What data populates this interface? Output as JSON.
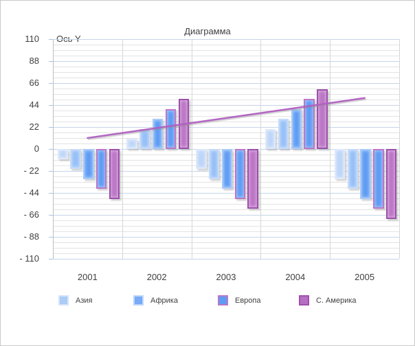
{
  "title": "Диаграмма",
  "y_axis_title": "Ось Y",
  "y_tick_labels": [
    "110",
    "88",
    "66",
    "44",
    "22",
    "0",
    "- 22",
    "- 44",
    "- 66",
    "- 88",
    "- 110"
  ],
  "x_tick_labels": [
    "2001",
    "2002",
    "2003",
    "2004",
    "2005"
  ],
  "legend": [
    {
      "label": "Азия",
      "fill": "#abccf6",
      "border": "#d6e4fb"
    },
    {
      "label": "Африка",
      "fill": "#78abf7",
      "border": "#bdd7fa"
    },
    {
      "label": "Европа",
      "fill": "#5e9cf4",
      "border": "#bc77c7"
    },
    {
      "label": "С. Америка",
      "fill": "#b76fc3",
      "border": "#9e51aa"
    }
  ],
  "chart_data": {
    "type": "bar",
    "title": "Диаграмма",
    "xlabel": "",
    "ylabel": "Ось Y",
    "categories": [
      "2001",
      "2002",
      "2003",
      "2004",
      "2005"
    ],
    "ylim": [
      -110,
      110
    ],
    "y_major_unit": 22,
    "y_minor_unit": 5.5,
    "grid": "on",
    "legend_position": "bottom",
    "series": [
      {
        "name": "Азия",
        "fill": "#bdd5f8",
        "border": "#dde9fc",
        "values": [
          -10,
          10,
          -20,
          20,
          -30
        ]
      },
      {
        "name": "",
        "fill": "#97c0f7",
        "border": "#c6dcfb",
        "values": [
          -20,
          20,
          -30,
          30,
          -40
        ]
      },
      {
        "name": "Африка",
        "fill": "#5e9cf4",
        "border": "#a9cbf9",
        "values": [
          -30,
          30,
          -40,
          40,
          -50
        ]
      },
      {
        "name": "Европа",
        "fill": "#5e9cf4",
        "border": "#bc77c7",
        "values": [
          -40,
          40,
          -50,
          50,
          -60
        ]
      },
      {
        "name": "С. Америка",
        "fill": "#bc76c6",
        "border": "#9d50a9",
        "values": [
          -50,
          50,
          -60,
          60,
          -70
        ]
      }
    ],
    "trendline": {
      "color": "#b05fc0",
      "start": {
        "category": "2001",
        "value": 11
      },
      "end": {
        "category": "2005",
        "value": 51
      }
    }
  }
}
